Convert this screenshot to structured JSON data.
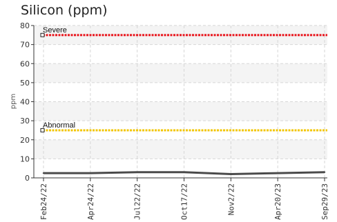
{
  "chart_data": {
    "type": "line",
    "title": "Silicon (ppm)",
    "xlabel": "",
    "ylabel": "ppm",
    "ylim": [
      0,
      80
    ],
    "yticks": [
      0,
      10,
      20,
      30,
      40,
      50,
      60,
      70,
      80
    ],
    "x_ticks": [
      "Feb24/22",
      "Apr24/22",
      "Jul22/22",
      "Oct17/22",
      "Nov2/22",
      "Apr20/23",
      "Sep29/23"
    ],
    "grid": true,
    "thresholds": [
      {
        "label": "Severe",
        "value": 75,
        "color": "#e8141c"
      },
      {
        "label": "Abnormal",
        "value": 25,
        "color": "#f2c500"
      }
    ],
    "series": [
      {
        "color": "#4a4a4a",
        "values": [
          2.5,
          2.5,
          3,
          3,
          2,
          2.5,
          3
        ]
      }
    ]
  }
}
